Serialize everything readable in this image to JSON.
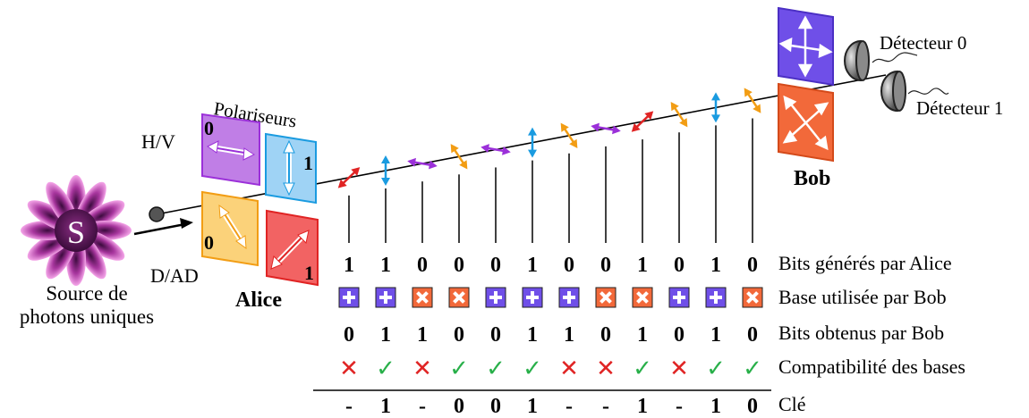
{
  "source": {
    "letter": "S",
    "caption_line1": "Source de",
    "caption_line2": "photons uniques"
  },
  "alice": {
    "name": "Alice",
    "polarizers_label": "Polariseurs",
    "basis_hv_label": "H/V",
    "basis_diag_label": "D/AD",
    "polarizers": [
      {
        "id": "purple-horizontal",
        "bit": "0",
        "color": "#c07ee6",
        "stroke": "#9b30d9"
      },
      {
        "id": "blue-vertical",
        "bit": "1",
        "color": "#9fd3f5",
        "stroke": "#1a9be0"
      },
      {
        "id": "orange-diagonal",
        "bit": "0",
        "color": "#fbd27a",
        "stroke": "#f29d14"
      },
      {
        "id": "red-antidiagonal",
        "bit": "1",
        "color": "#f26363",
        "stroke": "#e02424"
      }
    ]
  },
  "bob": {
    "name": "Bob",
    "detector0": "Détecteur 0",
    "detector1": "Détecteur 1"
  },
  "table": {
    "row_labels": {
      "alice_bits": "Bits générés par Alice",
      "bob_base": "Base utilisée par Bob",
      "bob_bits": "Bits obtenus par Bob",
      "compat": "Compatibilité des bases",
      "key": "Clé"
    },
    "alice_bits": [
      "1",
      "1",
      "0",
      "0",
      "0",
      "1",
      "0",
      "0",
      "1",
      "0",
      "1",
      "0"
    ],
    "photon_pol": [
      "red",
      "blue",
      "purple",
      "orange",
      "purple",
      "blue",
      "orange",
      "purple",
      "red",
      "orange",
      "blue",
      "orange"
    ],
    "bob_base": [
      "plus",
      "plus",
      "cross",
      "cross",
      "plus",
      "plus",
      "plus",
      "cross",
      "cross",
      "plus",
      "plus",
      "cross"
    ],
    "bob_bits": [
      "0",
      "1",
      "1",
      "0",
      "0",
      "1",
      "1",
      "0",
      "1",
      "0",
      "1",
      "0"
    ],
    "compat": [
      "no",
      "yes",
      "no",
      "yes",
      "yes",
      "yes",
      "no",
      "no",
      "yes",
      "no",
      "yes",
      "yes"
    ],
    "key": [
      "-",
      "1",
      "-",
      "0",
      "0",
      "1",
      "-",
      "-",
      "1",
      "-",
      "1",
      "0"
    ],
    "compat_yes_glyph": "✓",
    "compat_no_glyph": "✕"
  },
  "colors": {
    "red": "#e02424",
    "blue": "#1a9be0",
    "purple": "#9b30d9",
    "orange": "#f29d14",
    "plus_base": "#6f4fe8",
    "cross_base": "#f2693a",
    "check": "#29b04a",
    "crossmark": "#e02424"
  }
}
